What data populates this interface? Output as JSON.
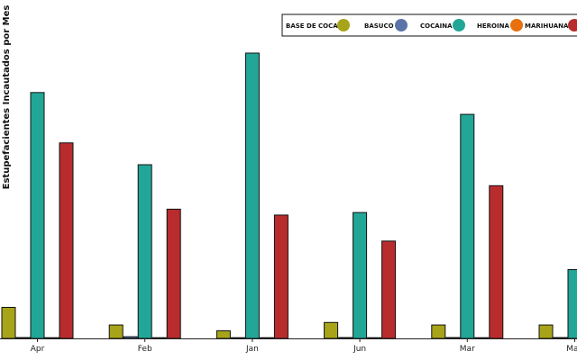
{
  "chart_data": {
    "type": "bar",
    "ylabel": "Estupefacientes Incautados por Mes",
    "xlabel": "",
    "categories": [
      "Apr",
      "Feb",
      "Jan",
      "Jun",
      "Mar",
      "May"
    ],
    "ylim": [
      0,
      340
    ],
    "grid": false,
    "legend_position": "top-right",
    "series": [
      {
        "name": "BASE DE COCA",
        "color": "#A8A41A",
        "values": [
          37,
          16,
          9,
          19,
          16,
          16
        ]
      },
      {
        "name": "BASUCO",
        "color": "#5B74A8",
        "values": [
          1,
          2,
          0.5,
          1,
          1,
          1
        ]
      },
      {
        "name": "COCAINA",
        "color": "#22A697",
        "values": [
          293,
          207,
          340,
          150,
          267,
          82
        ]
      },
      {
        "name": "HEROINA",
        "color": "#E8700E",
        "values": [
          0.5,
          0.5,
          0.3,
          0.4,
          0.4,
          0.3
        ]
      },
      {
        "name": "MARIHUANA",
        "color": "#B82C2E",
        "values": [
          233,
          154,
          147,
          116,
          182,
          0
        ]
      }
    ]
  }
}
